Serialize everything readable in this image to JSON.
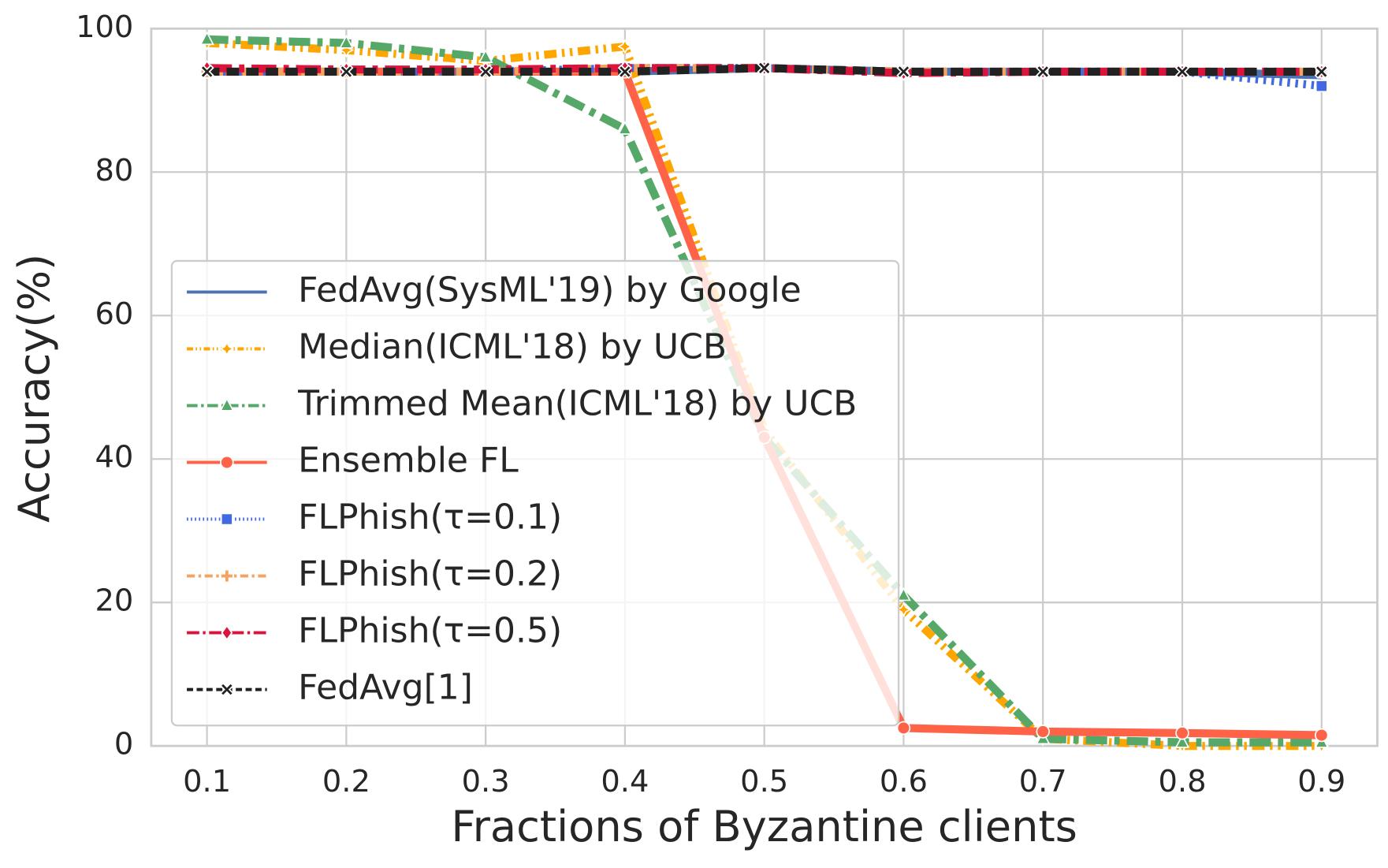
{
  "chart_data": {
    "type": "line",
    "xlabel": "Fractions of Byzantine clients",
    "ylabel": "Accuracy(%)",
    "x": [
      0.1,
      0.2,
      0.3,
      0.4,
      0.5,
      0.6,
      0.7,
      0.8,
      0.9
    ],
    "xlim": [
      0.06,
      0.94
    ],
    "xticks": [
      0.1,
      0.2,
      0.3,
      0.4,
      0.5,
      0.6,
      0.7,
      0.8,
      0.9
    ],
    "ylim": [
      0,
      100
    ],
    "yticks": [
      0,
      20,
      40,
      60,
      80,
      100
    ],
    "grid": true,
    "legend": "center left",
    "series": [
      {
        "name": "FedAvg(SysML'19) by Google",
        "color": "#4c72b0",
        "values": [
          94,
          94,
          94,
          94,
          94.5,
          94,
          94,
          94,
          93.5
        ]
      },
      {
        "name": "Median(ICML'18) by UCB",
        "color": "#ffa500",
        "values": [
          98,
          97,
          95.5,
          97.5,
          44,
          19,
          1,
          0,
          0
        ]
      },
      {
        "name": "Trimmed Mean(ICML'18) by UCB",
        "color": "#55a868",
        "values": [
          98.5,
          98,
          96,
          86,
          43,
          21,
          1,
          0.5,
          0.5
        ]
      },
      {
        "name": "Ensemble FL",
        "color": "#ff6347",
        "values": [
          94,
          94,
          94,
          94,
          43,
          2.5,
          2,
          1.8,
          1.5
        ]
      },
      {
        "name": "FLPhish(τ=0.1)",
        "color": "#4169e1",
        "values": [
          94,
          94,
          94,
          94.5,
          94.5,
          94,
          94,
          94,
          92
        ]
      },
      {
        "name": "FLPhish(τ=0.2)",
        "color": "#f4a460",
        "values": [
          94,
          94,
          94,
          94.5,
          94.5,
          94,
          94,
          94,
          94
        ]
      },
      {
        "name": "FLPhish(τ=0.5)",
        "color": "#dc143c",
        "values": [
          94.5,
          94.3,
          94.3,
          94.5,
          94.5,
          93.8,
          94,
          94,
          94
        ]
      },
      {
        "name": "FedAvg[1]",
        "color": "#222222",
        "values": [
          94,
          94,
          94,
          94,
          94.5,
          94,
          94,
          94,
          94
        ]
      }
    ]
  }
}
